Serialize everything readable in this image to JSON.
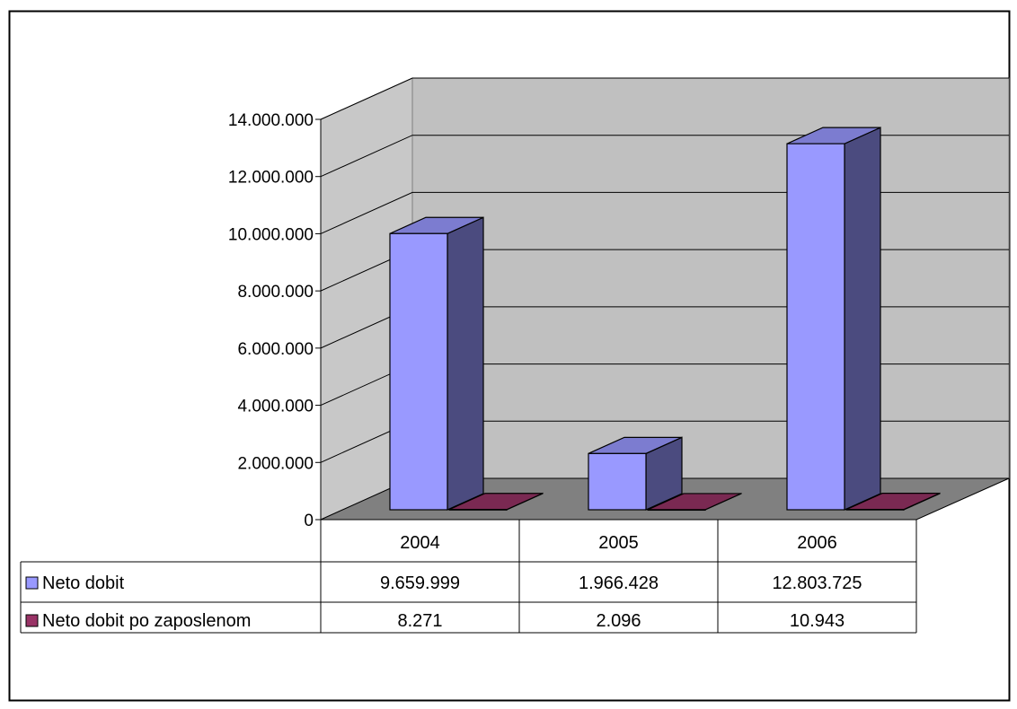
{
  "chart_data": {
    "type": "bar",
    "categories": [
      "2004",
      "2005",
      "2006"
    ],
    "series": [
      {
        "name": "Neto dobit",
        "values": [
          9659999,
          1966428,
          12803725
        ],
        "labels": [
          "9.659.999",
          "1.966.428",
          "12.803.725"
        ]
      },
      {
        "name": "Neto dobit po zaposlenom",
        "values": [
          8271,
          2096,
          10943
        ],
        "labels": [
          "8.271",
          "2.096",
          "10.943"
        ]
      }
    ],
    "ylim": [
      0,
      14000000
    ],
    "yticks": [
      0,
      2000000,
      4000000,
      6000000,
      8000000,
      10000000,
      12000000,
      14000000
    ],
    "ytick_labels": [
      "0",
      "2.000.000",
      "4.000.000",
      "6.000.000",
      "8.000.000",
      "10.000.000",
      "12.000.000",
      "14.000.000"
    ],
    "grid": true,
    "legend": "data table below plot",
    "style": "3d-clustered-column",
    "colors": {
      "series": [
        {
          "front": "#9999ff",
          "top": "#7c7cd0",
          "side": "#4b4b7f"
        },
        {
          "front": "#993366",
          "top": "#7a2952",
          "side": "#4d1a33"
        }
      ],
      "back_wall": "#c0c0c0",
      "side_wall": "#c8c8c8",
      "floor": "#808080"
    }
  }
}
